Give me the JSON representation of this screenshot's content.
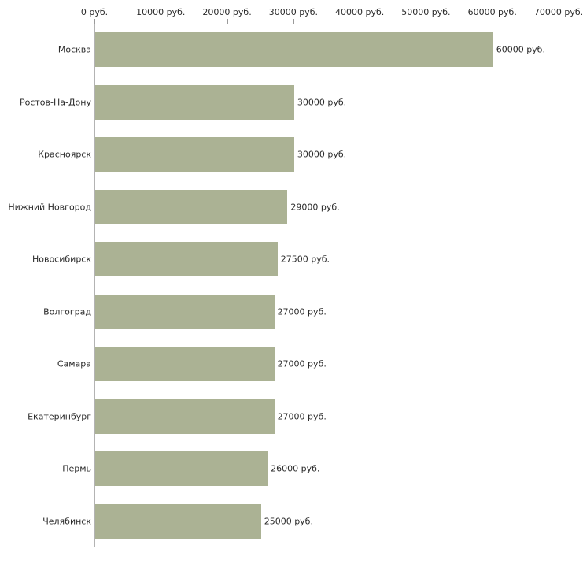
{
  "chart_data": {
    "type": "bar",
    "orientation": "horizontal",
    "title": "",
    "xlabel": "",
    "ylabel": "",
    "units": "руб.",
    "categories": [
      "Москва",
      "Ростов-На-Дону",
      "Красноярск",
      "Нижний Новгород",
      "Новосибирск",
      "Волгоград",
      "Самара",
      "Екатеринбург",
      "Пермь",
      "Челябинск"
    ],
    "values": [
      60000,
      30000,
      30000,
      29000,
      27500,
      27000,
      27000,
      27000,
      26000,
      25000
    ],
    "value_labels": [
      "60000 руб.",
      "30000 руб.",
      "30000 руб.",
      "29000 руб.",
      "27500 руб.",
      "27000 руб.",
      "27000 руб.",
      "27000 руб.",
      "26000 руб.",
      "25000 руб."
    ],
    "x_ticks": [
      0,
      10000,
      20000,
      30000,
      40000,
      50000,
      60000,
      70000
    ],
    "x_tick_labels": [
      "0 руб.",
      "10000 руб.",
      "20000 руб.",
      "30000 руб.",
      "40000 руб.",
      "50000 руб.",
      "60000 руб.",
      "70000 руб."
    ],
    "xlim": [
      0,
      70000
    ],
    "grid": false,
    "legend": "none",
    "axis_position": "top",
    "bar_color": "#abb294",
    "axis_color": "#b3b3b3",
    "text_color": "#2b2b2b",
    "background_color": "#ffffff"
  }
}
